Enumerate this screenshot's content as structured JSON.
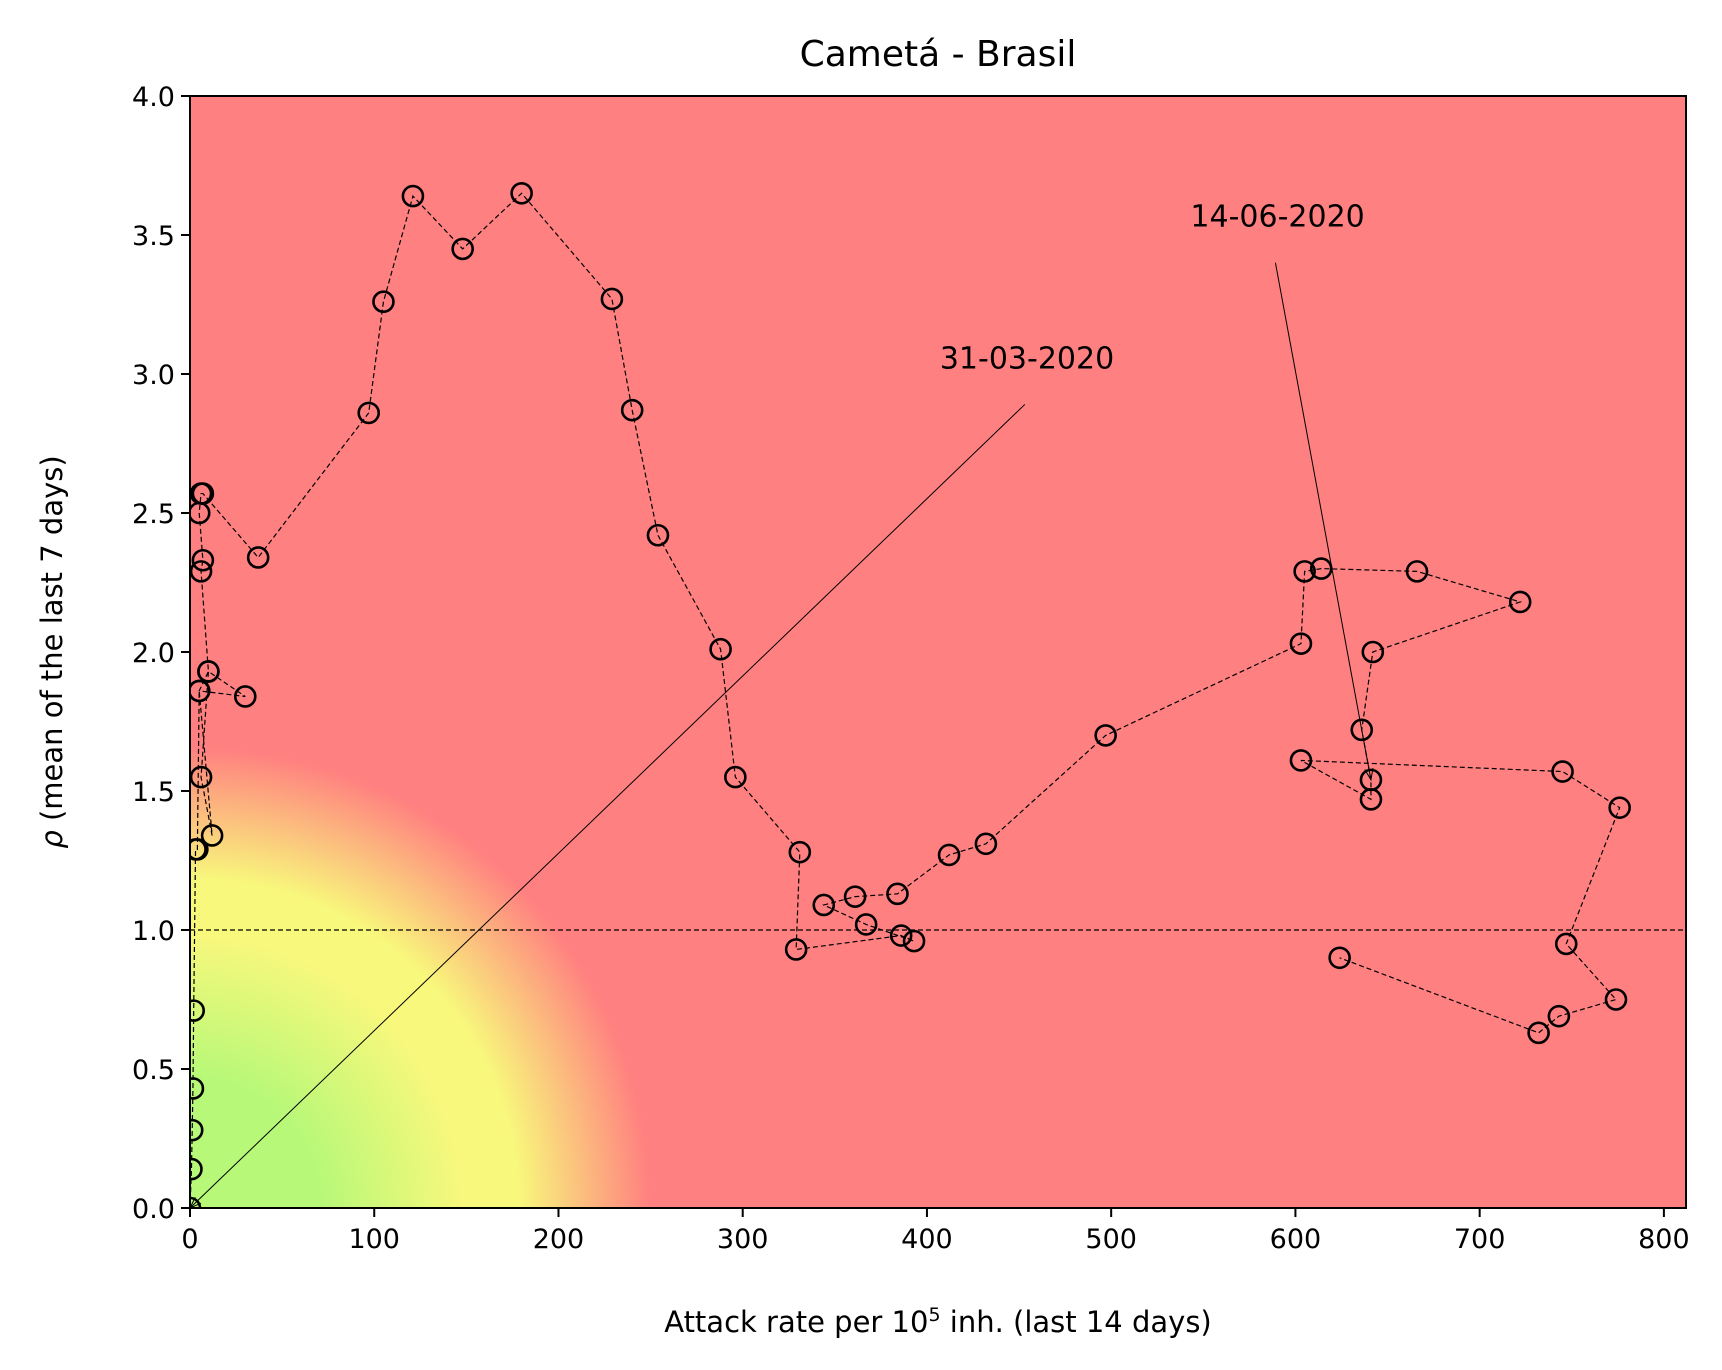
{
  "chart_data": {
    "type": "scatter",
    "title": "Cametá - Brasil",
    "xlabel": {
      "prefix": "Attack rate per 10",
      "sup": "5",
      "suffix": " inh. (last 14 days)"
    },
    "ylabel": {
      "symbol": "ρ",
      "rest": " (mean of the last 7 days)"
    },
    "xlim": [
      0,
      812
    ],
    "ylim": [
      0,
      4.0
    ],
    "xticks": [
      {
        "value": 0,
        "label": "0"
      },
      {
        "value": 100,
        "label": "100"
      },
      {
        "value": 200,
        "label": "200"
      },
      {
        "value": 300,
        "label": "300"
      },
      {
        "value": 400,
        "label": "400"
      },
      {
        "value": 500,
        "label": "500"
      },
      {
        "value": 600,
        "label": "600"
      },
      {
        "value": 700,
        "label": "700"
      },
      {
        "value": 800,
        "label": "800"
      }
    ],
    "yticks": [
      {
        "value": 0,
        "label": "0.0"
      },
      {
        "value": 0.5,
        "label": "0.5"
      },
      {
        "value": 1.0,
        "label": "1.0"
      },
      {
        "value": 1.5,
        "label": "1.5"
      },
      {
        "value": 2.0,
        "label": "2.0"
      },
      {
        "value": 2.5,
        "label": "2.5"
      },
      {
        "value": 3.0,
        "label": "3.0"
      },
      {
        "value": 3.5,
        "label": "3.5"
      },
      {
        "value": 4.0,
        "label": "4.0"
      }
    ],
    "reference_line_y": 1.0,
    "background": {
      "high_risk_color": "#ff8080",
      "mid_color": "#f8f87c",
      "low_color": "#b8f878"
    },
    "marker_edge_color": "#000000",
    "series": [
      {
        "x": [
          0,
          0.8,
          1.2,
          1.6,
          2,
          3,
          4,
          5,
          12,
          6,
          10,
          30,
          5,
          10,
          6,
          7,
          5,
          6,
          7,
          37,
          97,
          105,
          121,
          148,
          180,
          229,
          240,
          254,
          288,
          296,
          331,
          329,
          386,
          393,
          367,
          344,
          361,
          384,
          412,
          432,
          497,
          603,
          605,
          614,
          666,
          722,
          642,
          636,
          641,
          641,
          603,
          745,
          776,
          747,
          774,
          743,
          732,
          624
        ],
        "y": [
          0.0,
          0.14,
          0.28,
          0.43,
          0.71,
          1.29,
          1.29,
          1.86,
          1.34,
          1.55,
          1.93,
          1.84,
          1.86,
          1.93,
          2.29,
          2.33,
          2.5,
          2.57,
          2.57,
          2.34,
          2.86,
          3.26,
          3.64,
          3.45,
          3.65,
          3.27,
          2.87,
          2.42,
          2.01,
          1.55,
          1.28,
          0.93,
          0.98,
          0.96,
          1.02,
          1.09,
          1.12,
          1.13,
          1.27,
          1.31,
          1.7,
          2.03,
          2.29,
          2.3,
          2.29,
          2.18,
          2.0,
          1.72,
          1.54,
          1.47,
          1.61,
          1.57,
          1.44,
          0.95,
          0.75,
          0.69,
          0.63,
          0.9
        ]
      }
    ],
    "annotations": [
      {
        "text": "31-03-2020",
        "x": 0,
        "y": 0.0,
        "text_x": 407,
        "text_y": 3.02
      },
      {
        "text": "14-06-2020",
        "x": 641,
        "y": 1.54,
        "text_x": 543,
        "text_y": 3.53
      }
    ]
  }
}
